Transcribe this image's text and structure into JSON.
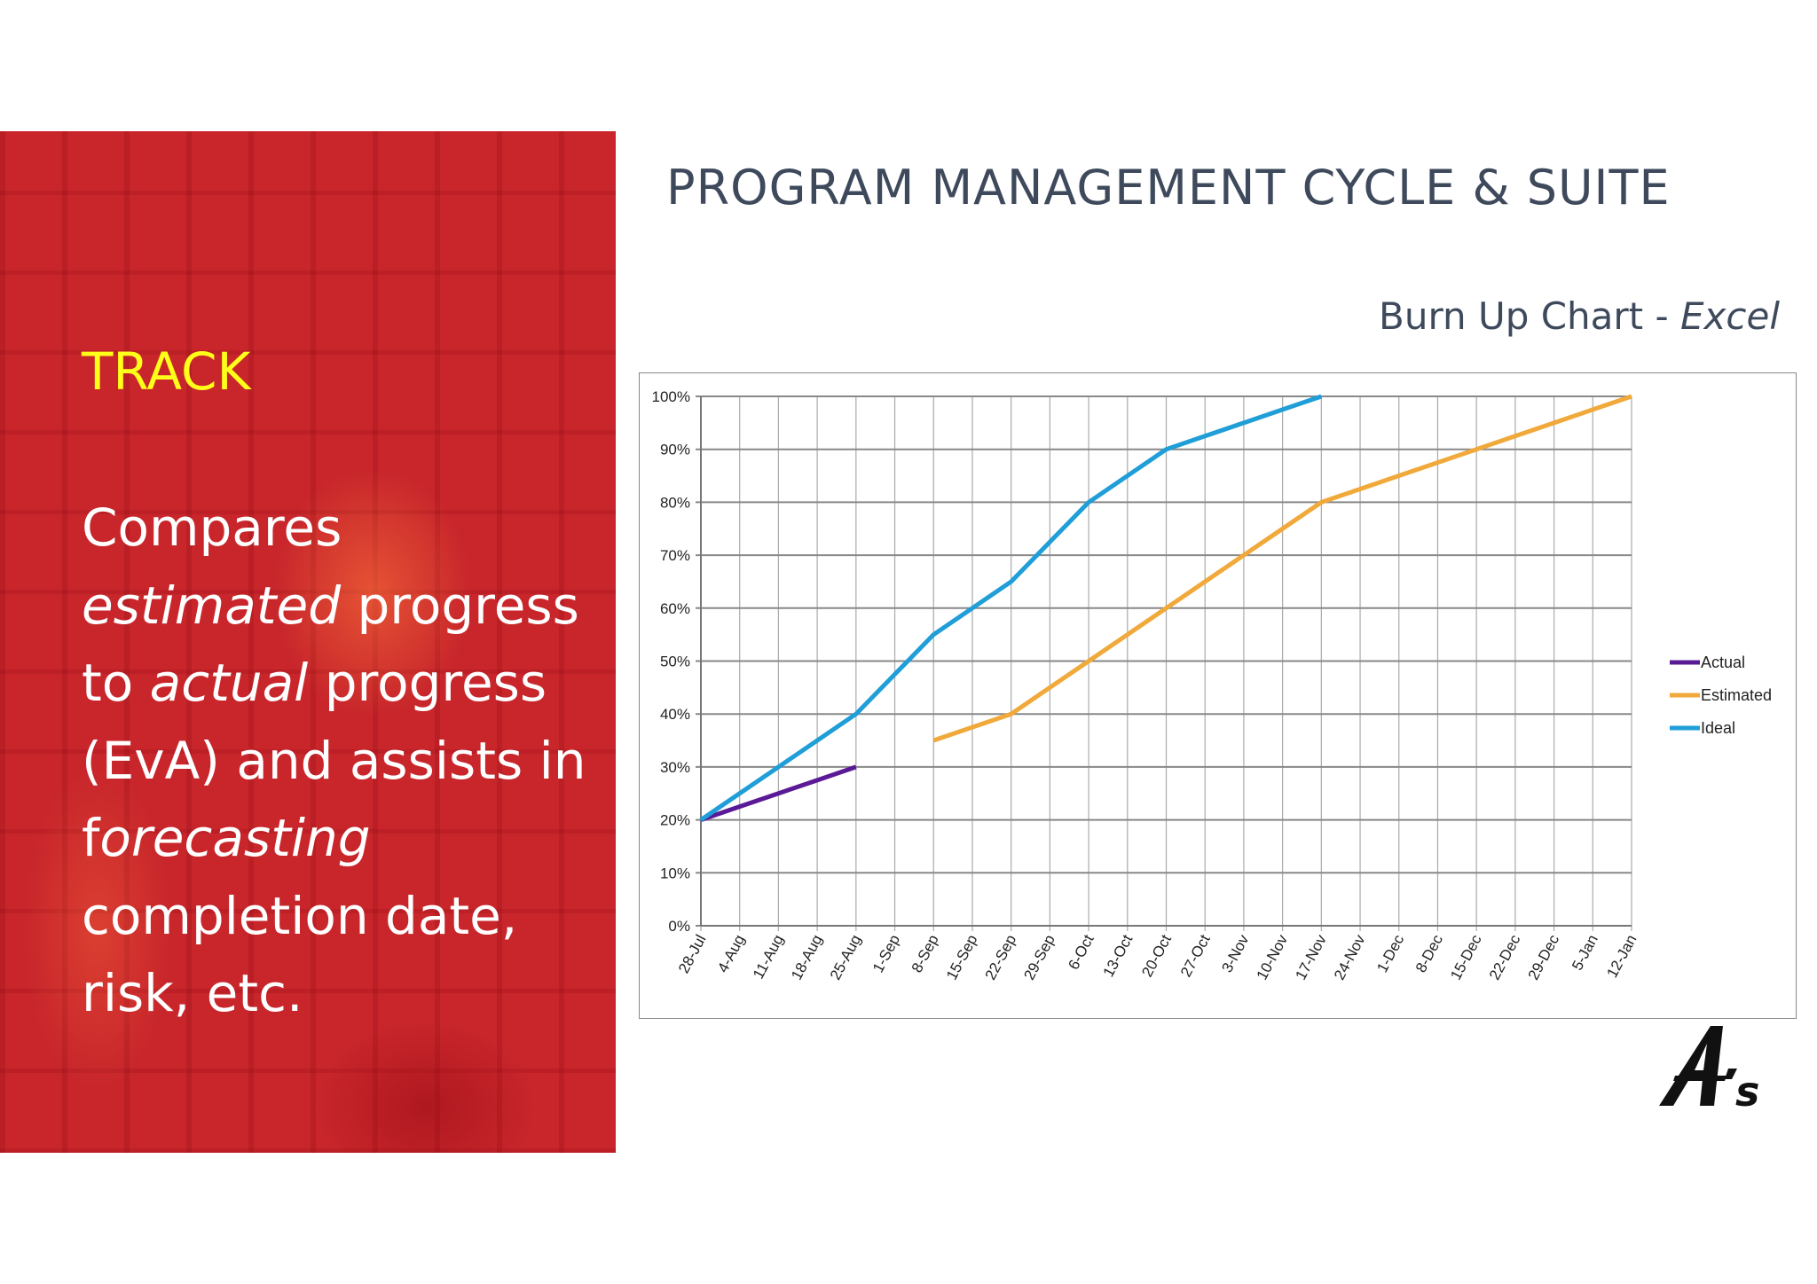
{
  "left_panel": {
    "heading": "TRACK",
    "body": [
      {
        "text": "Compares ",
        "italic": false
      },
      {
        "text": "estimated",
        "italic": true
      },
      {
        "text": " progress to ",
        "italic": false
      },
      {
        "text": "actual",
        "italic": true
      },
      {
        "text": " progress (EvA) and assists in f",
        "italic": false
      },
      {
        "text": "orecasting",
        "italic": true
      },
      {
        "text": " completion date, risk, etc.",
        "italic": false
      }
    ]
  },
  "header": {
    "title": "PROGRAM MANAGEMENT CYCLE & SUITE",
    "subtitle_main": "Burn Up Chart - ",
    "subtitle_italic": "Excel"
  },
  "logo": {
    "text": "A's"
  },
  "chart_data": {
    "type": "line",
    "title": "",
    "xlabel": "",
    "ylabel": "",
    "ylim": [
      0,
      100
    ],
    "yticks": [
      "0%",
      "10%",
      "20%",
      "30%",
      "40%",
      "50%",
      "60%",
      "70%",
      "80%",
      "90%",
      "100%"
    ],
    "grid": true,
    "legend_position": "right",
    "categories": [
      "28-Jul",
      "4-Aug",
      "11-Aug",
      "18-Aug",
      "25-Aug",
      "1-Sep",
      "8-Sep",
      "15-Sep",
      "22-Sep",
      "29-Sep",
      "6-Oct",
      "13-Oct",
      "20-Oct",
      "27-Oct",
      "3-Nov",
      "10-Nov",
      "17-Nov",
      "24-Nov",
      "1-Dec",
      "8-Dec",
      "15-Dec",
      "22-Dec",
      "29-Dec",
      "5-Jan",
      "12-Jan"
    ],
    "series": [
      {
        "name": "Actual",
        "color": "#5a1a96",
        "values": [
          20,
          22.5,
          25,
          27.5,
          30,
          null,
          null,
          null,
          null,
          null,
          null,
          null,
          null,
          null,
          null,
          null,
          null,
          null,
          null,
          null,
          null,
          null,
          null,
          null,
          null
        ]
      },
      {
        "name": "Estimated",
        "color": "#f0a93a",
        "values": [
          null,
          null,
          null,
          null,
          null,
          null,
          35,
          37.5,
          40,
          45,
          50,
          55,
          60,
          65,
          70,
          75,
          80,
          82.5,
          85,
          87.5,
          90,
          92.5,
          95,
          97.5,
          100
        ]
      },
      {
        "name": "Ideal",
        "color": "#1f9ed8",
        "values": [
          20,
          25,
          30,
          35,
          40,
          47.5,
          55,
          60,
          65,
          72.5,
          80,
          85,
          90,
          92.5,
          95,
          97.5,
          100,
          null,
          null,
          null,
          null,
          null,
          null,
          null,
          null
        ]
      }
    ]
  }
}
